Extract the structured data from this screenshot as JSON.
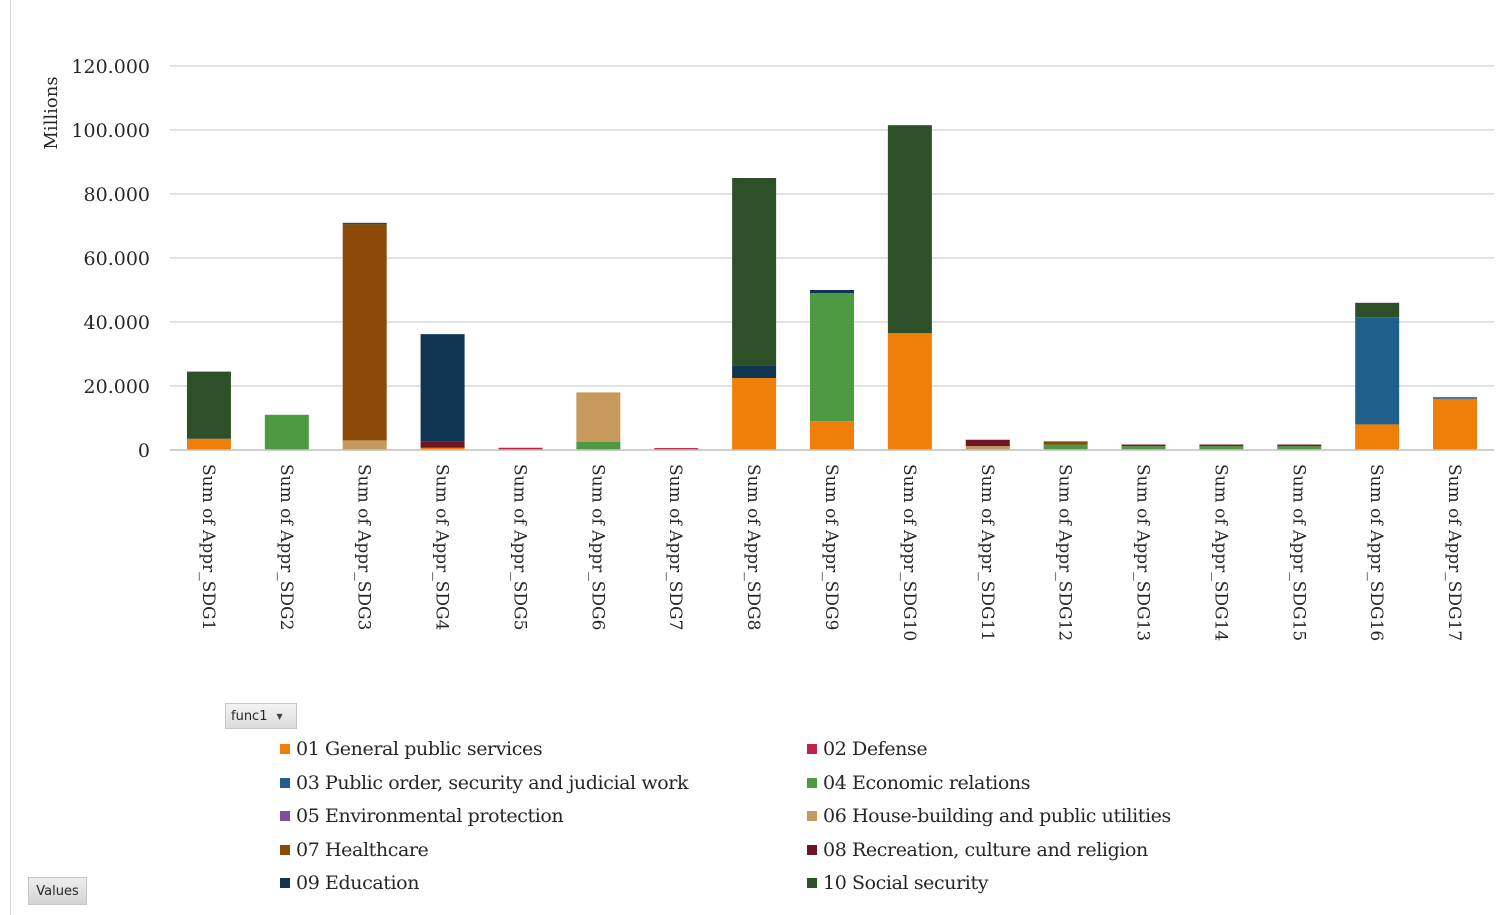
{
  "chart_data": {
    "type": "bar",
    "stacked": true,
    "ylabel": "Millions",
    "xlabel": "",
    "ylim": [
      0,
      120000
    ],
    "yticks": [
      0,
      20000,
      40000,
      60000,
      80000,
      100000,
      120000
    ],
    "ytick_labels": [
      "0",
      "20.000",
      "40.000",
      "60.000",
      "80.000",
      "100.000",
      "120.000"
    ],
    "grid": true,
    "legend_position": "bottom",
    "categories": [
      "Sum of Appr_SDG1",
      "Sum of Appr_SDG2",
      "Sum of Appr_SDG3",
      "Sum of Appr_SDG4",
      "Sum of Appr_SDG5",
      "Sum of Appr_SDG6",
      "Sum of Appr_SDG7",
      "Sum of Appr_SDG8",
      "Sum of Appr_SDG9",
      "Sum of Appr_SDG10",
      "Sum of Appr_SDG11",
      "Sum of Appr_SDG12",
      "Sum of Appr_SDG13",
      "Sum of Appr_SDG14",
      "Sum of Appr_SDG15",
      "Sum of Appr_SDG16",
      "Sum of Appr_SDG17"
    ],
    "series": [
      {
        "name": "01 General public services",
        "color": "#f07f09",
        "values": [
          3500,
          0,
          0,
          700,
          0,
          0,
          0,
          22500,
          9000,
          36500,
          0,
          0,
          0,
          0,
          0,
          8000,
          16000
        ]
      },
      {
        "name": "02 Defense",
        "color": "#c0234a",
        "values": [
          0,
          0,
          0,
          0,
          700,
          0,
          600,
          0,
          0,
          0,
          0,
          200,
          200,
          200,
          200,
          0,
          0
        ]
      },
      {
        "name": "03 Public order, security and judicial work",
        "color": "#1f5f8b",
        "values": [
          0,
          0,
          0,
          0,
          0,
          0,
          0,
          0,
          0,
          0,
          0,
          0,
          0,
          0,
          0,
          33500,
          500
        ]
      },
      {
        "name": "04 Economic relations",
        "color": "#4e9a43",
        "values": [
          0,
          11000,
          0,
          0,
          0,
          2500,
          0,
          0,
          40000,
          0,
          0,
          1500,
          1000,
          1000,
          1000,
          0,
          0
        ]
      },
      {
        "name": "05 Environmental protection",
        "color": "#7a4f9f",
        "values": [
          0,
          0,
          0,
          0,
          0,
          0,
          0,
          0,
          0,
          0,
          0,
          0,
          0,
          0,
          0,
          0,
          0
        ]
      },
      {
        "name": "06 House-building and public utilities",
        "color": "#c59a5c",
        "values": [
          0,
          0,
          3000,
          0,
          0,
          15500,
          0,
          0,
          0,
          0,
          1200,
          0,
          0,
          0,
          0,
          0,
          0
        ]
      },
      {
        "name": "07 Healthcare",
        "color": "#8b4a08",
        "values": [
          0,
          0,
          67500,
          0,
          0,
          0,
          0,
          0,
          0,
          0,
          0,
          1000,
          0,
          0,
          0,
          0,
          0
        ]
      },
      {
        "name": "08 Recreation, culture and religion",
        "color": "#6e1423",
        "values": [
          0,
          0,
          0,
          2000,
          0,
          0,
          0,
          0,
          0,
          0,
          2000,
          0,
          500,
          500,
          500,
          0,
          0
        ]
      },
      {
        "name": "09 Education",
        "color": "#0f3552",
        "values": [
          0,
          0,
          0,
          33500,
          0,
          0,
          0,
          4000,
          1000,
          0,
          0,
          0,
          0,
          0,
          0,
          0,
          0
        ]
      },
      {
        "name": "10 Social security",
        "color": "#2e5028",
        "values": [
          21000,
          0,
          500,
          0,
          0,
          0,
          0,
          58500,
          0,
          65000,
          0,
          0,
          0,
          0,
          0,
          4500,
          0
        ]
      }
    ]
  },
  "controls": {
    "pivot_field": "func1",
    "values_button": "Values"
  },
  "icons": {
    "dropdown": "dropdown-arrow-icon"
  }
}
